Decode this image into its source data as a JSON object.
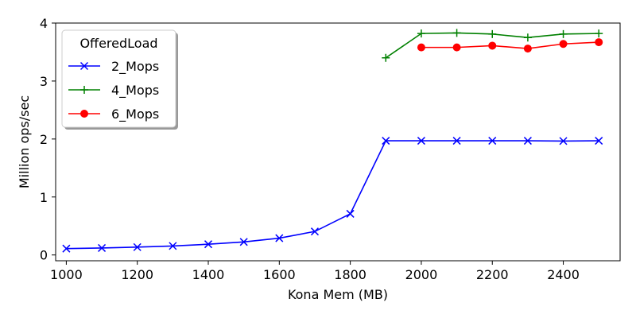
{
  "chart_data": {
    "type": "line",
    "title": "",
    "xlabel": "Kona Mem (MB)",
    "ylabel": "Million ops/sec",
    "xlim": [
      970,
      2560
    ],
    "ylim": [
      -0.1,
      4
    ],
    "xticks": [
      1000,
      1200,
      1400,
      1600,
      1800,
      2000,
      2200,
      2400
    ],
    "yticks": [
      0,
      1,
      2,
      3,
      4
    ],
    "grid": false,
    "legend": {
      "title": "OfferedLoad",
      "placement": "top-left"
    },
    "series": [
      {
        "name": "2_Mops",
        "color": "#0000ff",
        "marker": "x",
        "x": [
          1000,
          1100,
          1200,
          1300,
          1400,
          1500,
          1600,
          1700,
          1800,
          1900,
          2000,
          2100,
          2200,
          2300,
          2400,
          2500
        ],
        "y": [
          0.11,
          0.12,
          0.135,
          0.155,
          0.185,
          0.225,
          0.29,
          0.405,
          0.71,
          1.97,
          1.97,
          1.97,
          1.97,
          1.97,
          1.965,
          1.97
        ]
      },
      {
        "name": "4_Mops",
        "color": "#008000",
        "marker": "+",
        "x": [
          1900,
          2000,
          2100,
          2200,
          2300,
          2400,
          2500
        ],
        "y": [
          3.4,
          3.82,
          3.83,
          3.81,
          3.75,
          3.81,
          3.82
        ]
      },
      {
        "name": "6_Mops",
        "color": "#ff0000",
        "marker": "o",
        "x": [
          2000,
          2100,
          2200,
          2300,
          2400,
          2500
        ],
        "y": [
          3.58,
          3.58,
          3.61,
          3.56,
          3.64,
          3.67
        ]
      }
    ]
  }
}
